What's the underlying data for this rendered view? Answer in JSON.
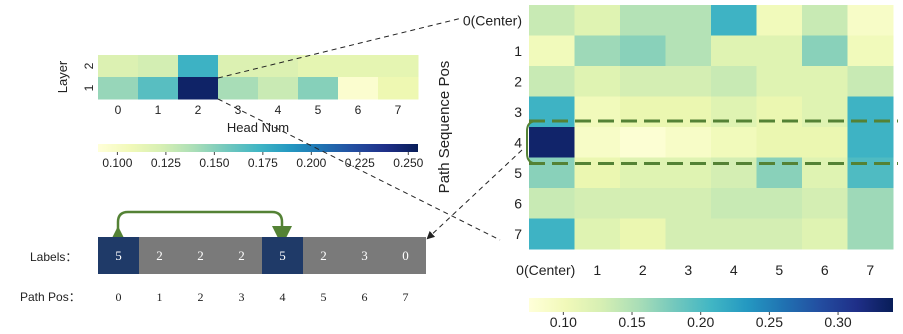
{
  "chart_data": [
    {
      "type": "heatmap",
      "xlabel": "Head Num",
      "ylabel": "Layer",
      "x_ticks": [
        "0",
        "1",
        "2",
        "3",
        "4",
        "5",
        "6",
        "7"
      ],
      "y_ticks": [
        "2",
        "1"
      ],
      "values": [
        [
          0.12,
          0.125,
          0.175,
          0.12,
          0.12,
          0.115,
          0.115,
          0.115
        ],
        [
          0.145,
          0.165,
          0.25,
          0.14,
          0.13,
          0.15,
          0.095,
          0.11
        ]
      ],
      "colorbar": {
        "min": 0.09,
        "max": 0.255,
        "ticks": [
          "0.100",
          "0.125",
          "0.150",
          "0.175",
          "0.200",
          "0.225",
          "0.250"
        ],
        "tick_values": [
          0.1,
          0.125,
          0.15,
          0.175,
          0.2,
          0.225,
          0.25
        ]
      },
      "colormap": "YlGnBu"
    },
    {
      "type": "heatmap",
      "ylabel": "Path Sequence Pos",
      "x_ticks": [
        "0(Center)",
        "1",
        "2",
        "3",
        "4",
        "5",
        "6",
        "7"
      ],
      "y_ticks": [
        "0(Center)",
        "1",
        "2",
        "3",
        "4",
        "5",
        "6",
        "7"
      ],
      "values": [
        [
          0.14,
          0.12,
          0.15,
          0.15,
          0.21,
          0.1,
          0.14,
          0.09
        ],
        [
          0.1,
          0.16,
          0.17,
          0.15,
          0.12,
          0.12,
          0.17,
          0.1
        ],
        [
          0.14,
          0.12,
          0.13,
          0.13,
          0.14,
          0.12,
          0.12,
          0.14
        ],
        [
          0.21,
          0.1,
          0.11,
          0.11,
          0.12,
          0.11,
          0.12,
          0.21
        ],
        [
          0.33,
          0.09,
          0.08,
          0.09,
          0.1,
          0.11,
          0.11,
          0.21
        ],
        [
          0.17,
          0.11,
          0.12,
          0.12,
          0.13,
          0.17,
          0.12,
          0.2
        ],
        [
          0.14,
          0.13,
          0.13,
          0.13,
          0.14,
          0.14,
          0.13,
          0.16
        ],
        [
          0.21,
          0.12,
          0.11,
          0.13,
          0.13,
          0.13,
          0.12,
          0.16
        ]
      ],
      "colorbar": {
        "min": 0.075,
        "max": 0.34,
        "ticks": [
          "0.10",
          "0.15",
          "0.20",
          "0.25",
          "0.30"
        ],
        "tick_values": [
          0.1,
          0.15,
          0.2,
          0.25,
          0.3
        ]
      },
      "colormap": "YlGnBu"
    }
  ],
  "sequence": {
    "labels_title": "Labels：",
    "pos_title": "Path  Pos：",
    "labels": [
      "5",
      "2",
      "2",
      "2",
      "5",
      "2",
      "3",
      "0"
    ],
    "positions": [
      "0",
      "1",
      "2",
      "3",
      "4",
      "5",
      "6",
      "7"
    ],
    "highlight_color": "#1f3a68",
    "base_color": "#7a7a7a",
    "arrow_color": "#548235"
  }
}
